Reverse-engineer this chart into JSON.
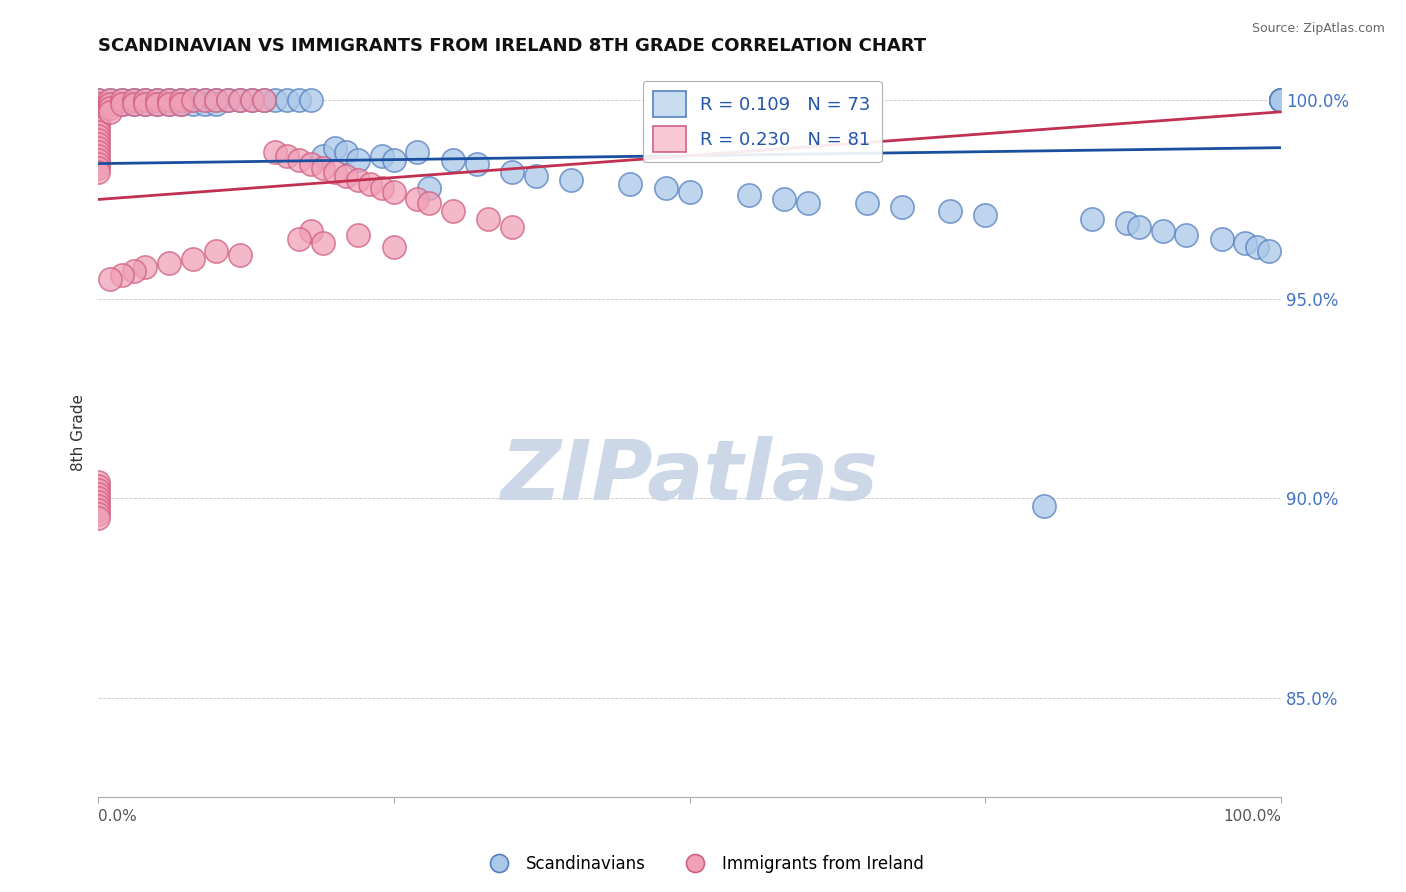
{
  "title": "SCANDINAVIAN VS IMMIGRANTS FROM IRELAND 8TH GRADE CORRELATION CHART",
  "source": "Source: ZipAtlas.com",
  "ylabel": "8th Grade",
  "blue_R": 0.109,
  "blue_N": 73,
  "pink_R": 0.23,
  "pink_N": 81,
  "blue_color": "#aac8e8",
  "pink_color": "#f0a0b8",
  "blue_edge_color": "#5580c0",
  "pink_edge_color": "#d06080",
  "blue_line_color": "#1a4fa0",
  "pink_line_color": "#c03050",
  "legend_blue_fill": "#c8ddf0",
  "legend_pink_fill": "#f8c8d4",
  "watermark_color": "#ccd8e8",
  "xmin": 0.0,
  "xmax": 1.0,
  "ymin": 0.825,
  "ymax": 1.008,
  "yticks": [
    0.85,
    0.9,
    0.95,
    1.0
  ],
  "ytick_labels": [
    "85.0%",
    "90.0%",
    "95.0%",
    "100.0%"
  ],
  "blue_scatter_x": [
    0.0,
    0.0,
    0.0,
    0.0,
    0.0,
    0.01,
    0.01,
    0.02,
    0.02,
    0.03,
    0.03,
    0.04,
    0.04,
    0.05,
    0.05,
    0.06,
    0.06,
    0.07,
    0.07,
    0.08,
    0.08,
    0.09,
    0.09,
    0.1,
    0.1,
    0.11,
    0.12,
    0.13,
    0.14,
    0.15,
    0.16,
    0.17,
    0.18,
    0.19,
    0.2,
    0.21,
    0.22,
    0.24,
    0.25,
    0.27,
    0.28,
    0.3,
    0.32,
    0.35,
    0.37,
    0.4,
    0.45,
    0.48,
    0.5,
    0.55,
    0.58,
    0.6,
    0.65,
    0.68,
    0.72,
    0.75,
    0.8,
    0.84,
    0.87,
    0.88,
    0.9,
    0.92,
    0.95,
    0.97,
    0.98,
    0.99,
    1.0,
    1.0,
    1.0,
    1.0,
    1.0,
    1.0,
    1.0
  ],
  "blue_scatter_y": [
    1.0,
    0.999,
    0.998,
    0.997,
    0.996,
    1.0,
    0.999,
    1.0,
    0.999,
    1.0,
    0.999,
    1.0,
    0.999,
    1.0,
    0.999,
    1.0,
    0.999,
    1.0,
    0.999,
    1.0,
    0.999,
    1.0,
    0.999,
    1.0,
    0.999,
    1.0,
    1.0,
    1.0,
    1.0,
    1.0,
    1.0,
    1.0,
    1.0,
    0.986,
    0.988,
    0.987,
    0.985,
    0.986,
    0.985,
    0.987,
    0.978,
    0.985,
    0.984,
    0.982,
    0.981,
    0.98,
    0.979,
    0.978,
    0.977,
    0.976,
    0.975,
    0.974,
    0.974,
    0.973,
    0.972,
    0.971,
    0.898,
    0.97,
    0.969,
    0.968,
    0.967,
    0.966,
    0.965,
    0.964,
    0.963,
    0.962,
    1.0,
    1.0,
    1.0,
    1.0,
    1.0,
    1.0,
    1.0
  ],
  "pink_scatter_x": [
    0.0,
    0.0,
    0.0,
    0.0,
    0.0,
    0.0,
    0.0,
    0.0,
    0.0,
    0.0,
    0.0,
    0.0,
    0.0,
    0.0,
    0.0,
    0.0,
    0.0,
    0.0,
    0.0,
    0.01,
    0.01,
    0.01,
    0.01,
    0.02,
    0.02,
    0.03,
    0.03,
    0.04,
    0.04,
    0.05,
    0.05,
    0.06,
    0.06,
    0.07,
    0.07,
    0.08,
    0.09,
    0.1,
    0.11,
    0.12,
    0.13,
    0.14,
    0.15,
    0.16,
    0.17,
    0.18,
    0.19,
    0.2,
    0.21,
    0.22,
    0.23,
    0.24,
    0.25,
    0.27,
    0.28,
    0.3,
    0.33,
    0.35,
    0.18,
    0.22,
    0.17,
    0.19,
    0.25,
    0.1,
    0.12,
    0.08,
    0.06,
    0.04,
    0.03,
    0.02,
    0.01,
    0.0,
    0.0,
    0.0,
    0.0,
    0.0,
    0.0,
    0.0,
    0.0,
    0.0,
    0.0
  ],
  "pink_scatter_y": [
    1.0,
    0.999,
    0.998,
    0.997,
    0.996,
    0.995,
    0.994,
    0.993,
    0.992,
    0.991,
    0.99,
    0.989,
    0.988,
    0.987,
    0.986,
    0.985,
    0.984,
    0.983,
    0.982,
    1.0,
    0.999,
    0.998,
    0.997,
    1.0,
    0.999,
    1.0,
    0.999,
    1.0,
    0.999,
    1.0,
    0.999,
    1.0,
    0.999,
    1.0,
    0.999,
    1.0,
    1.0,
    1.0,
    1.0,
    1.0,
    1.0,
    1.0,
    0.987,
    0.986,
    0.985,
    0.984,
    0.983,
    0.982,
    0.981,
    0.98,
    0.979,
    0.978,
    0.977,
    0.975,
    0.974,
    0.972,
    0.97,
    0.968,
    0.967,
    0.966,
    0.965,
    0.964,
    0.963,
    0.962,
    0.961,
    0.96,
    0.959,
    0.958,
    0.957,
    0.956,
    0.955,
    0.904,
    0.903,
    0.902,
    0.901,
    0.9,
    0.899,
    0.898,
    0.897,
    0.896,
    0.895
  ],
  "blue_trend_x": [
    0.0,
    1.0
  ],
  "blue_trend_y": [
    0.984,
    0.988
  ],
  "pink_trend_x": [
    0.0,
    1.0
  ],
  "pink_trend_y": [
    0.975,
    0.997
  ]
}
